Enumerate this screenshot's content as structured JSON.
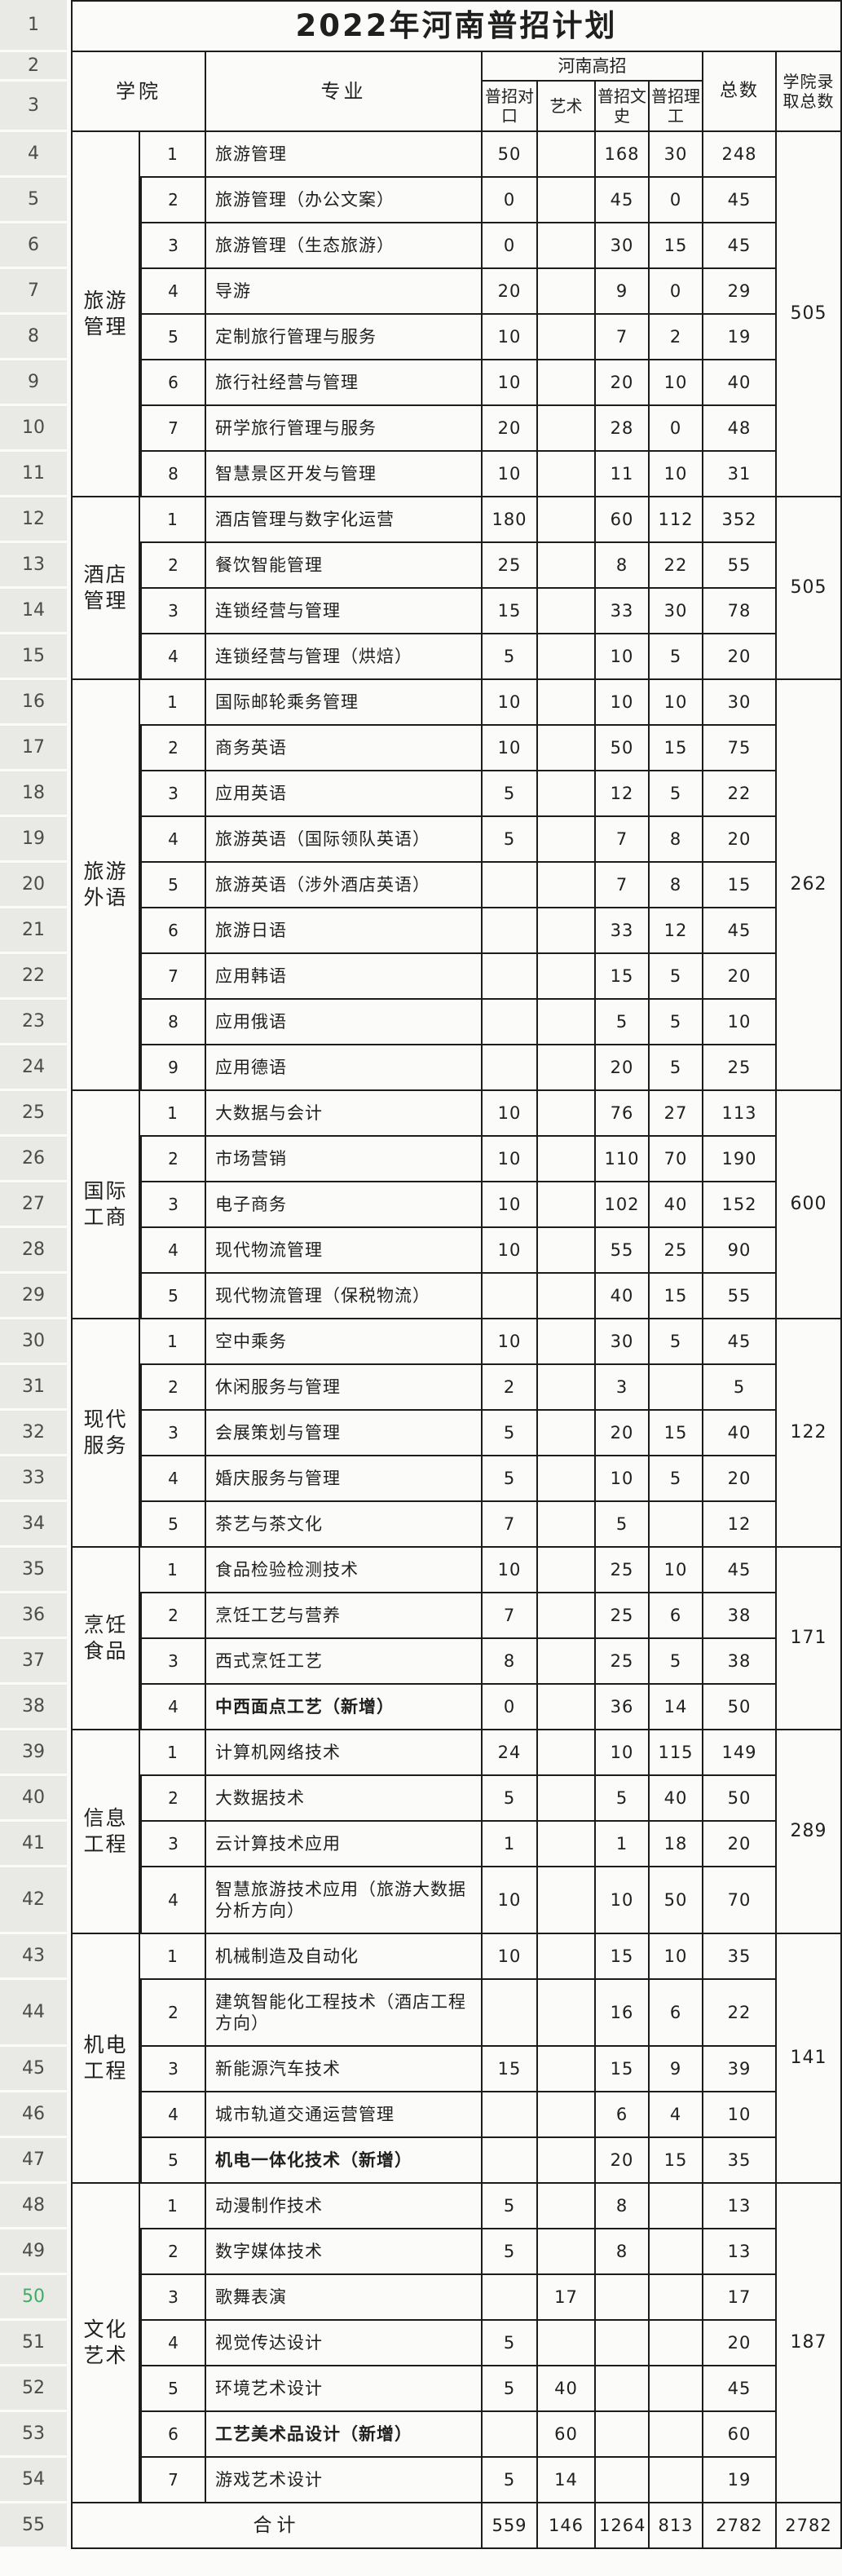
{
  "title": "2022年河南普招计划",
  "row_numbers": {
    "title_row": "1",
    "header_row": "2",
    "subheader_row": "3",
    "footer_row": "55"
  },
  "green_row": 50,
  "colors": {
    "grid_line": "#1c1c1c",
    "row_strip_bg": "#e9e9e6",
    "green_row_number": "#3fae62"
  },
  "header": {
    "college": "学院",
    "major": "专业",
    "group": "河南高招",
    "sub": [
      "普招对口",
      "艺术",
      "普招文史",
      "普招理工"
    ],
    "total": "总数",
    "college_total": "学院录取总数"
  },
  "colleges": [
    {
      "name": "旅游管理",
      "admit_total": "505",
      "majors": [
        {
          "row": "4",
          "no": "1",
          "name": "旅游管理",
          "duikou": "50",
          "yishu": "",
          "wenshi": "168",
          "ligong": "30",
          "total": "248"
        },
        {
          "row": "5",
          "no": "2",
          "name": "旅游管理（办公文案）",
          "duikou": "0",
          "yishu": "",
          "wenshi": "45",
          "ligong": "0",
          "total": "45"
        },
        {
          "row": "6",
          "no": "3",
          "name": "旅游管理（生态旅游）",
          "duikou": "0",
          "yishu": "",
          "wenshi": "30",
          "ligong": "15",
          "total": "45"
        },
        {
          "row": "7",
          "no": "4",
          "name": "导游",
          "duikou": "20",
          "yishu": "",
          "wenshi": "9",
          "ligong": "0",
          "total": "29"
        },
        {
          "row": "8",
          "no": "5",
          "name": "定制旅行管理与服务",
          "duikou": "10",
          "yishu": "",
          "wenshi": "7",
          "ligong": "2",
          "total": "19"
        },
        {
          "row": "9",
          "no": "6",
          "name": "旅行社经营与管理",
          "duikou": "10",
          "yishu": "",
          "wenshi": "20",
          "ligong": "10",
          "total": "40"
        },
        {
          "row": "10",
          "no": "7",
          "name": "研学旅行管理与服务",
          "duikou": "20",
          "yishu": "",
          "wenshi": "28",
          "ligong": "0",
          "total": "48"
        },
        {
          "row": "11",
          "no": "8",
          "name": "智慧景区开发与管理",
          "duikou": "10",
          "yishu": "",
          "wenshi": "11",
          "ligong": "10",
          "total": "31"
        }
      ]
    },
    {
      "name": "酒店管理",
      "admit_total": "505",
      "majors": [
        {
          "row": "12",
          "no": "1",
          "name": "酒店管理与数字化运营",
          "duikou": "180",
          "yishu": "",
          "wenshi": "60",
          "ligong": "112",
          "total": "352"
        },
        {
          "row": "13",
          "no": "2",
          "name": "餐饮智能管理",
          "duikou": "25",
          "yishu": "",
          "wenshi": "8",
          "ligong": "22",
          "total": "55"
        },
        {
          "row": "14",
          "no": "3",
          "name": "连锁经营与管理",
          "duikou": "15",
          "yishu": "",
          "wenshi": "33",
          "ligong": "30",
          "total": "78"
        },
        {
          "row": "15",
          "no": "4",
          "name": "连锁经营与管理（烘焙）",
          "duikou": "5",
          "yishu": "",
          "wenshi": "10",
          "ligong": "5",
          "total": "20"
        }
      ]
    },
    {
      "name": "旅游外语",
      "admit_total": "262",
      "majors": [
        {
          "row": "16",
          "no": "1",
          "name": "国际邮轮乘务管理",
          "duikou": "10",
          "yishu": "",
          "wenshi": "10",
          "ligong": "10",
          "total": "30"
        },
        {
          "row": "17",
          "no": "2",
          "name": "商务英语",
          "duikou": "10",
          "yishu": "",
          "wenshi": "50",
          "ligong": "15",
          "total": "75"
        },
        {
          "row": "18",
          "no": "3",
          "name": "应用英语",
          "duikou": "5",
          "yishu": "",
          "wenshi": "12",
          "ligong": "5",
          "total": "22"
        },
        {
          "row": "19",
          "no": "4",
          "name": "旅游英语（国际领队英语）",
          "duikou": "5",
          "yishu": "",
          "wenshi": "7",
          "ligong": "8",
          "total": "20"
        },
        {
          "row": "20",
          "no": "5",
          "name": "旅游英语（涉外酒店英语）",
          "duikou": "",
          "yishu": "",
          "wenshi": "7",
          "ligong": "8",
          "total": "15"
        },
        {
          "row": "21",
          "no": "6",
          "name": "旅游日语",
          "duikou": "",
          "yishu": "",
          "wenshi": "33",
          "ligong": "12",
          "total": "45"
        },
        {
          "row": "22",
          "no": "7",
          "name": "应用韩语",
          "duikou": "",
          "yishu": "",
          "wenshi": "15",
          "ligong": "5",
          "total": "20"
        },
        {
          "row": "23",
          "no": "8",
          "name": "应用俄语",
          "duikou": "",
          "yishu": "",
          "wenshi": "5",
          "ligong": "5",
          "total": "10"
        },
        {
          "row": "24",
          "no": "9",
          "name": "应用德语",
          "duikou": "",
          "yishu": "",
          "wenshi": "20",
          "ligong": "5",
          "total": "25"
        }
      ]
    },
    {
      "name": "国际工商",
      "admit_total": "600",
      "majors": [
        {
          "row": "25",
          "no": "1",
          "name": "大数据与会计",
          "duikou": "10",
          "yishu": "",
          "wenshi": "76",
          "ligong": "27",
          "total": "113"
        },
        {
          "row": "26",
          "no": "2",
          "name": "市场营销",
          "duikou": "10",
          "yishu": "",
          "wenshi": "110",
          "ligong": "70",
          "total": "190"
        },
        {
          "row": "27",
          "no": "3",
          "name": "电子商务",
          "duikou": "10",
          "yishu": "",
          "wenshi": "102",
          "ligong": "40",
          "total": "152"
        },
        {
          "row": "28",
          "no": "4",
          "name": "现代物流管理",
          "duikou": "10",
          "yishu": "",
          "wenshi": "55",
          "ligong": "25",
          "total": "90"
        },
        {
          "row": "29",
          "no": "5",
          "name": "现代物流管理（保税物流）",
          "duikou": "",
          "yishu": "",
          "wenshi": "40",
          "ligong": "15",
          "total": "55"
        }
      ]
    },
    {
      "name": "现代服务",
      "admit_total": "122",
      "majors": [
        {
          "row": "30",
          "no": "1",
          "name": "空中乘务",
          "duikou": "10",
          "yishu": "",
          "wenshi": "30",
          "ligong": "5",
          "total": "45"
        },
        {
          "row": "31",
          "no": "2",
          "name": "休闲服务与管理",
          "duikou": "2",
          "yishu": "",
          "wenshi": "3",
          "ligong": "",
          "total": "5"
        },
        {
          "row": "32",
          "no": "3",
          "name": "会展策划与管理",
          "duikou": "5",
          "yishu": "",
          "wenshi": "20",
          "ligong": "15",
          "total": "40"
        },
        {
          "row": "33",
          "no": "4",
          "name": "婚庆服务与管理",
          "duikou": "5",
          "yishu": "",
          "wenshi": "10",
          "ligong": "5",
          "total": "20"
        },
        {
          "row": "34",
          "no": "5",
          "name": "茶艺与茶文化",
          "duikou": "7",
          "yishu": "",
          "wenshi": "5",
          "ligong": "",
          "total": "12"
        }
      ]
    },
    {
      "name": "烹饪食品",
      "admit_total": "171",
      "majors": [
        {
          "row": "35",
          "no": "1",
          "name": "食品检验检测技术",
          "duikou": "10",
          "yishu": "",
          "wenshi": "25",
          "ligong": "10",
          "total": "45"
        },
        {
          "row": "36",
          "no": "2",
          "name": "烹饪工艺与营养",
          "duikou": "7",
          "yishu": "",
          "wenshi": "25",
          "ligong": "6",
          "total": "38"
        },
        {
          "row": "37",
          "no": "3",
          "name": "西式烹饪工艺",
          "duikou": "8",
          "yishu": "",
          "wenshi": "25",
          "ligong": "5",
          "total": "38"
        },
        {
          "row": "38",
          "no": "4",
          "name": "中西面点工艺（新增）",
          "bold": true,
          "duikou": "0",
          "yishu": "",
          "wenshi": "36",
          "ligong": "14",
          "total": "50"
        }
      ]
    },
    {
      "name": "信息工程",
      "admit_total": "289",
      "majors": [
        {
          "row": "39",
          "no": "1",
          "name": "计算机网络技术",
          "duikou": "24",
          "yishu": "",
          "wenshi": "10",
          "ligong": "115",
          "total": "149"
        },
        {
          "row": "40",
          "no": "2",
          "name": "大数据技术",
          "duikou": "5",
          "yishu": "",
          "wenshi": "5",
          "ligong": "40",
          "total": "50"
        },
        {
          "row": "41",
          "no": "3",
          "name": "云计算技术应用",
          "duikou": "1",
          "yishu": "",
          "wenshi": "1",
          "ligong": "18",
          "total": "20"
        },
        {
          "row": "42",
          "no": "4",
          "name": "智慧旅游技术应用（旅游大数据分析方向）",
          "duikou": "10",
          "yishu": "",
          "wenshi": "10",
          "ligong": "50",
          "total": "70"
        }
      ]
    },
    {
      "name": "机电工程",
      "admit_total": "141",
      "majors": [
        {
          "row": "43",
          "no": "1",
          "name": "机械制造及自动化",
          "duikou": "10",
          "yishu": "",
          "wenshi": "15",
          "ligong": "10",
          "total": "35"
        },
        {
          "row": "44",
          "no": "2",
          "name": "建筑智能化工程技术（酒店工程方向）",
          "duikou": "",
          "yishu": "",
          "wenshi": "16",
          "ligong": "6",
          "total": "22"
        },
        {
          "row": "45",
          "no": "3",
          "name": "新能源汽车技术",
          "duikou": "15",
          "yishu": "",
          "wenshi": "15",
          "ligong": "9",
          "total": "39"
        },
        {
          "row": "46",
          "no": "4",
          "name": "城市轨道交通运营管理",
          "duikou": "",
          "yishu": "",
          "wenshi": "6",
          "ligong": "4",
          "total": "10"
        },
        {
          "row": "47",
          "no": "5",
          "name": "机电一体化技术（新增）",
          "bold": true,
          "duikou": "",
          "yishu": "",
          "wenshi": "20",
          "ligong": "15",
          "total": "35"
        }
      ]
    },
    {
      "name": "文化艺术",
      "admit_total": "187",
      "majors": [
        {
          "row": "48",
          "no": "1",
          "name": "动漫制作技术",
          "duikou": "5",
          "yishu": "",
          "wenshi": "8",
          "ligong": "",
          "total": "13"
        },
        {
          "row": "49",
          "no": "2",
          "name": "数字媒体技术",
          "duikou": "5",
          "yishu": "",
          "wenshi": "8",
          "ligong": "",
          "total": "13"
        },
        {
          "row": "50",
          "no": "3",
          "name": "歌舞表演",
          "duikou": "",
          "yishu": "17",
          "wenshi": "",
          "ligong": "",
          "total": "17"
        },
        {
          "row": "51",
          "no": "4",
          "name": "视觉传达设计",
          "duikou": "5",
          "yishu": "",
          "wenshi": "",
          "ligong": "",
          "total": "20"
        },
        {
          "row": "52",
          "no": "5",
          "name": "环境艺术设计",
          "duikou": "5",
          "yishu": "40",
          "wenshi": "",
          "ligong": "",
          "total": "45"
        },
        {
          "row": "53",
          "no": "6",
          "name": "工艺美术品设计（新增）",
          "bold": true,
          "duikou": "",
          "yishu": "60",
          "wenshi": "",
          "ligong": "",
          "total": "60"
        },
        {
          "row": "54",
          "no": "7",
          "name": "游戏艺术设计",
          "duikou": "5",
          "yishu": "14",
          "wenshi": "",
          "ligong": "",
          "total": "19"
        }
      ]
    }
  ],
  "footer": {
    "label": "合计",
    "duikou": "559",
    "yishu": "146",
    "wenshi": "1264",
    "ligong": "813",
    "total": "2782",
    "college_total": "2782"
  }
}
